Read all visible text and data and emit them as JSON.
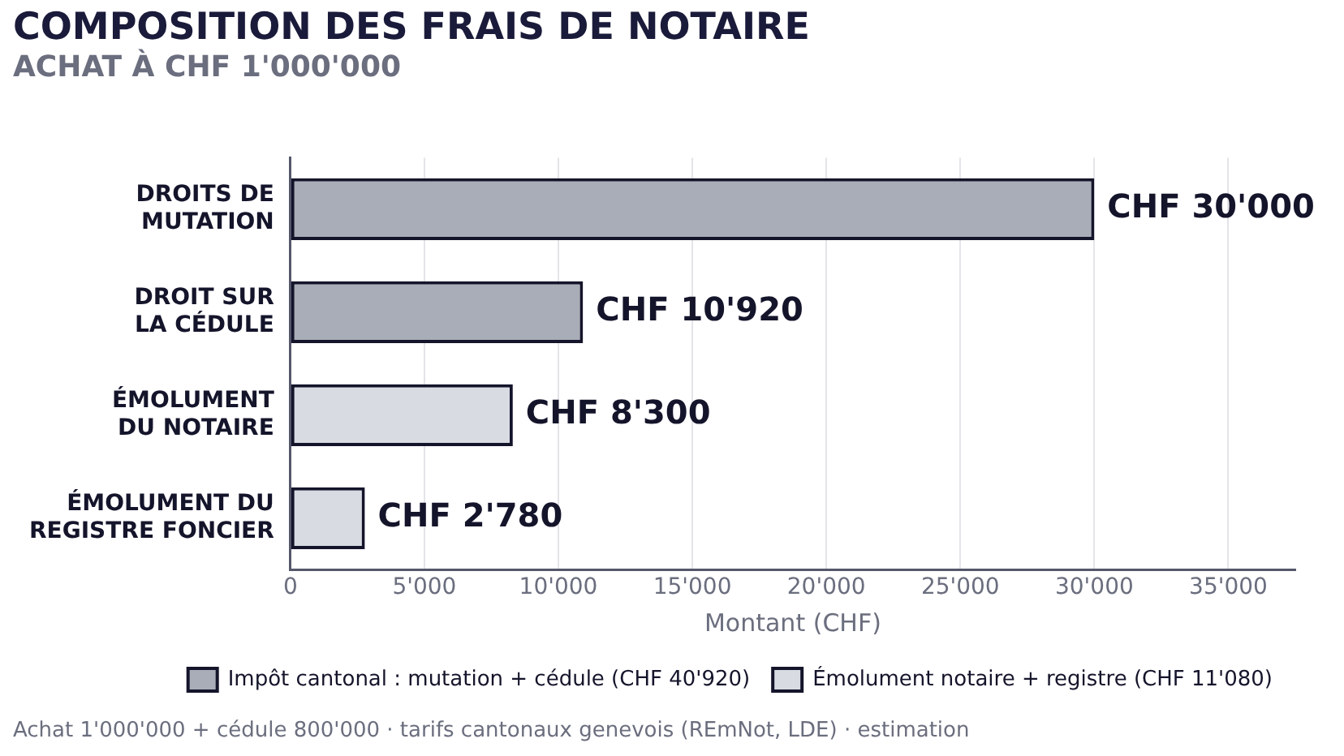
{
  "chart_data": {
    "type": "bar",
    "orientation": "horizontal",
    "stacked": true,
    "title": "COMPOSITION DES FRAIS DE NOTAIRE",
    "subtitle": "ACHAT À CHF 1'000'000",
    "xlabel": "Montant (CHF)",
    "categories": [
      "DROITS DE MUTATION",
      "DROIT SUR LA CÉDULE",
      "ÉMOLUMENT DU NOTAIRE",
      "ÉMOLUMENT DU REGISTRE FONCIER"
    ],
    "series": [
      {
        "name": "Impôt cantonal : mutation + cédule (CHF 40'920)",
        "color": "#a9adb8",
        "values": [
          30000,
          10920,
          null,
          null
        ],
        "value_labels": [
          "CHF 30'000",
          "CHF 10'920",
          null,
          null
        ]
      },
      {
        "name": "Émolument notaire + registre (CHF 11'080)",
        "color": "#d8dbe2",
        "values": [
          null,
          null,
          8300,
          2780
        ],
        "value_labels": [
          null,
          null,
          "CHF 8'300",
          "CHF 2'780"
        ]
      }
    ],
    "xlim": [
      0,
      37500
    ],
    "xticks": [
      0,
      {
        "value": 5000,
        "label": "5'000"
      },
      {
        "value": 10000,
        "label": "10'000"
      },
      {
        "value": 15000,
        "label": "15'000"
      },
      {
        "value": 20000,
        "label": "20'000"
      },
      {
        "value": 25000,
        "label": "25'000"
      },
      {
        "value": 30000,
        "label": "30'000"
      },
      {
        "value": 35000,
        "label": "35'000"
      }
    ],
    "grid": "x",
    "legend": "bottom",
    "annotations": [
      "Achat 1'000'000 + cédule 800'000 · tarifs cantonaux genevois (REmNot, LDE) · estimation"
    ]
  }
}
